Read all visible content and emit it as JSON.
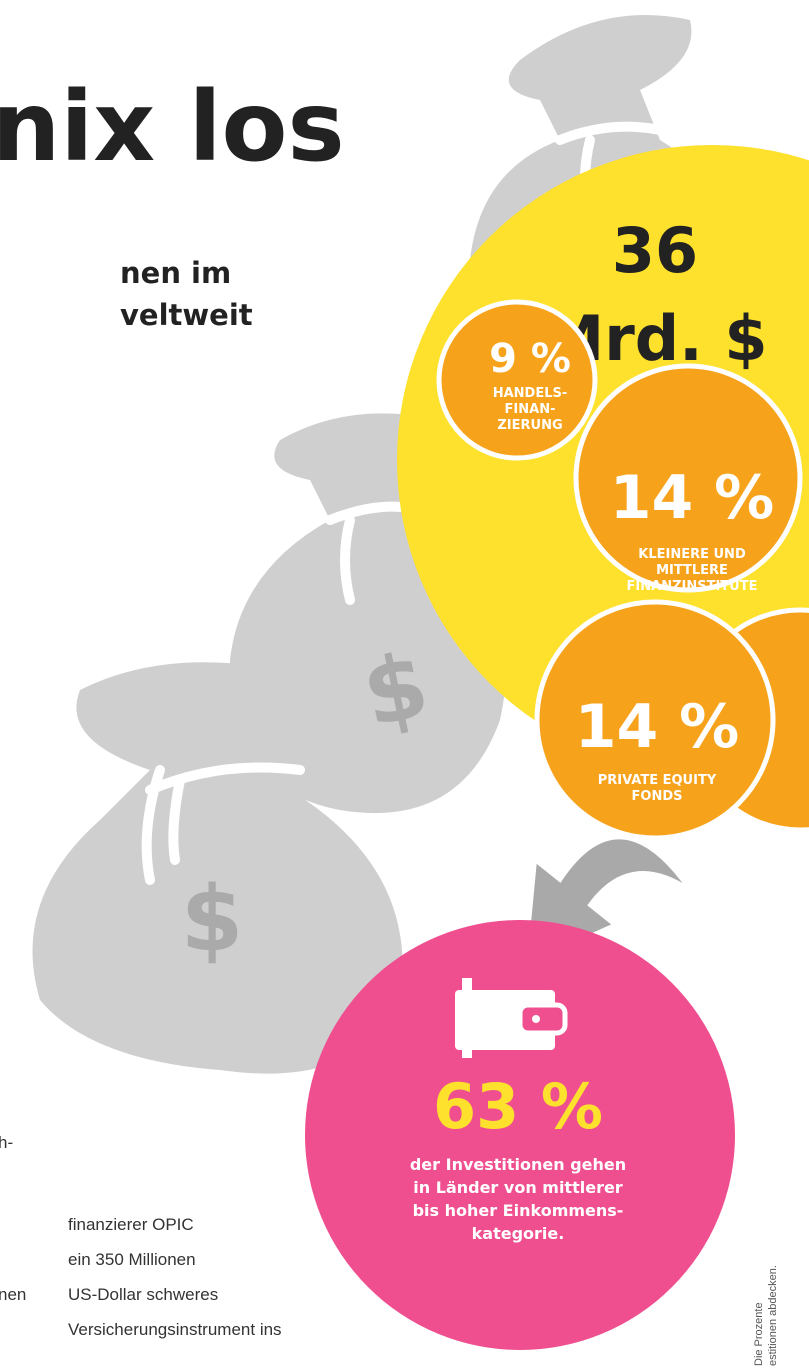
{
  "header": {
    "title": "nix los",
    "subtitle": [
      "nen im",
      "veltweit"
    ]
  },
  "total": {
    "value": "36",
    "unit": "Mrd. $"
  },
  "segments": [
    {
      "value": "9 %",
      "label": [
        "HANDELS-",
        "FINAN-",
        "ZIERUNG"
      ]
    },
    {
      "value": "14 %",
      "label": [
        "KLEINERE UND",
        "MITTLERE",
        "FINANZINSTITUTE"
      ]
    },
    {
      "value": "14 %",
      "label": [
        "PRIVATE EQUITY",
        "FONDS"
      ]
    }
  ],
  "bag_symbol": "$",
  "highlight": {
    "value": "63 %",
    "text": [
      "der Investitionen gehen",
      "in Länder von mittlerer",
      "bis hoher Einkommens-",
      "kategorie."
    ]
  },
  "body_text": {
    "left": [
      "h-",
      "nen"
    ],
    "column": [
      "finanzierer OPIC",
      "ein 350 Millionen",
      "US-Dollar schweres",
      "Versicherungsinstrument ins"
    ]
  },
  "note": [
    "Die Prozente",
    "estitionen abdecken."
  ]
}
